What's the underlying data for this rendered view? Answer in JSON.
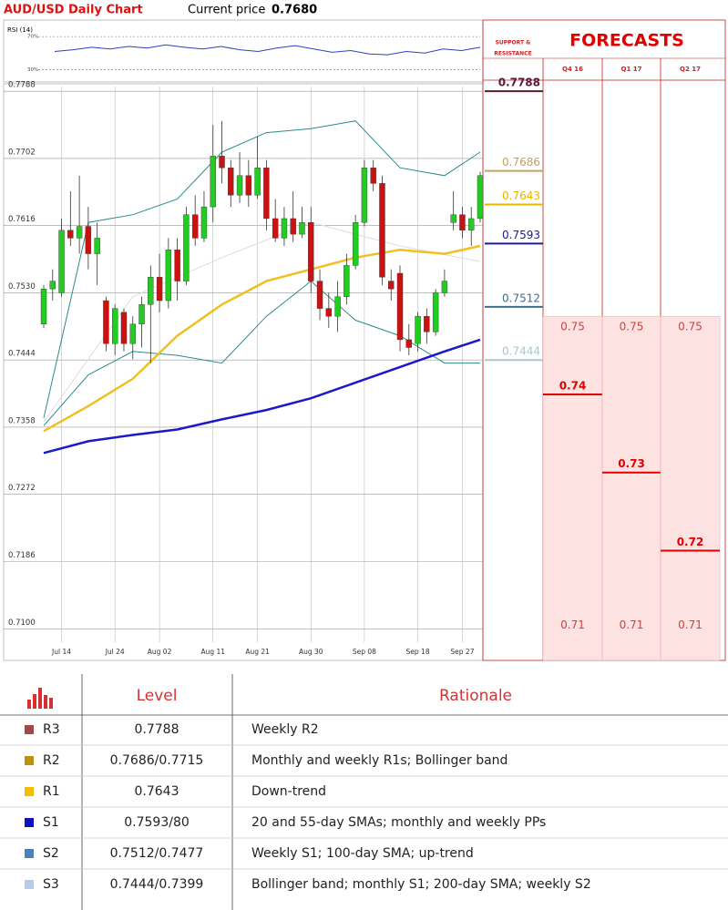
{
  "header": {
    "title": "AUD/USD Daily Chart",
    "price_label": "Current price",
    "price": "0.7680"
  },
  "chart_data": [
    {
      "type": "candlestick",
      "categories": [
        null,
        null,
        "Jul 14",
        null,
        null,
        null,
        null,
        null,
        "Jul 24",
        null,
        null,
        null,
        null,
        "Aug 02",
        null,
        null,
        null,
        null,
        null,
        "Aug 11",
        null,
        null,
        null,
        null,
        "Aug 21",
        null,
        null,
        null,
        null,
        null,
        "Aug 30",
        null,
        null,
        null,
        null,
        null,
        "Sep 08",
        null,
        null,
        null,
        null,
        null,
        "Sep 18",
        null,
        null,
        null,
        null,
        "Sep 27",
        null,
        null
      ],
      "open": [
        0.749,
        0.7535,
        0.753,
        0.761,
        0.76,
        0.7615,
        0.758,
        0.752,
        0.7465,
        0.7505,
        0.7465,
        0.749,
        0.7515,
        0.755,
        0.752,
        0.7585,
        0.7545,
        0.763,
        0.76,
        0.764,
        0.7705,
        0.769,
        0.7655,
        0.768,
        0.7655,
        0.769,
        0.7625,
        0.76,
        0.7625,
        0.7605,
        0.762,
        0.7545,
        0.751,
        0.75,
        0.7525,
        0.7565,
        0.762,
        0.769,
        0.767,
        0.7545,
        0.7555,
        0.747,
        0.7465,
        0.75,
        0.748,
        0.753,
        0.762,
        0.763,
        0.761,
        0.7625
      ],
      "high": [
        0.754,
        0.756,
        0.7625,
        0.766,
        0.768,
        0.764,
        0.762,
        0.7525,
        0.7515,
        0.751,
        0.75,
        0.7525,
        0.7565,
        0.758,
        0.76,
        0.76,
        0.764,
        0.7655,
        0.766,
        0.7745,
        0.775,
        0.77,
        0.771,
        0.77,
        0.773,
        0.77,
        0.765,
        0.764,
        0.766,
        0.764,
        0.764,
        0.756,
        0.753,
        0.7545,
        0.758,
        0.763,
        0.77,
        0.77,
        0.768,
        0.756,
        0.7565,
        0.749,
        0.7505,
        0.751,
        0.7535,
        0.756,
        0.766,
        0.764,
        0.764,
        0.7685
      ],
      "low": [
        0.7485,
        0.752,
        0.7525,
        0.759,
        0.758,
        0.756,
        0.754,
        0.7455,
        0.745,
        0.7455,
        0.7445,
        0.746,
        0.744,
        0.7505,
        0.751,
        0.752,
        0.754,
        0.759,
        0.7595,
        0.762,
        0.767,
        0.764,
        0.7645,
        0.764,
        0.765,
        0.761,
        0.7595,
        0.759,
        0.7595,
        0.76,
        0.753,
        0.7495,
        0.7485,
        0.748,
        0.7515,
        0.756,
        0.7615,
        0.766,
        0.754,
        0.752,
        0.7455,
        0.745,
        0.7455,
        0.7465,
        0.7475,
        0.7525,
        0.761,
        0.76,
        0.759,
        0.762
      ],
      "close": [
        0.7535,
        0.7545,
        0.761,
        0.76,
        0.7615,
        0.758,
        0.76,
        0.7465,
        0.751,
        0.7465,
        0.749,
        0.7515,
        0.755,
        0.752,
        0.7585,
        0.7545,
        0.763,
        0.76,
        0.764,
        0.7705,
        0.769,
        0.7655,
        0.768,
        0.7655,
        0.769,
        0.7625,
        0.76,
        0.7625,
        0.7605,
        0.762,
        0.7545,
        0.751,
        0.75,
        0.7525,
        0.7565,
        0.762,
        0.769,
        0.767,
        0.755,
        0.7535,
        0.747,
        0.746,
        0.75,
        0.748,
        0.753,
        0.7545,
        0.763,
        0.761,
        0.7625,
        0.768
      ],
      "up_color": "#22cc22",
      "down_color": "#cc1111",
      "lines": [
        {
          "color": "#dddddd",
          "x": [
            0,
            10,
            20,
            30,
            40,
            49
          ],
          "values": [
            0.7365,
            0.7525,
            0.7575,
            0.762,
            0.759,
            0.757
          ]
        },
        {
          "color": "#2a8a8a",
          "x": [
            0,
            5,
            10,
            15,
            20,
            25,
            30,
            35,
            40,
            45,
            49
          ],
          "values": [
            0.737,
            0.762,
            0.763,
            0.765,
            0.771,
            0.7735,
            0.774,
            0.775,
            0.769,
            0.768,
            0.771
          ]
        },
        {
          "color": "#2a8a8a",
          "x": [
            0,
            5,
            10,
            15,
            20,
            25,
            30,
            35,
            40,
            45,
            49
          ],
          "values": [
            0.736,
            0.7425,
            0.7455,
            0.745,
            0.744,
            0.75,
            0.7545,
            0.7495,
            0.7475,
            0.744,
            0.744
          ]
        },
        {
          "color": "#f0c020",
          "x": [
            0,
            5,
            10,
            15,
            20,
            25,
            30,
            35,
            40,
            45,
            49
          ],
          "values": [
            0.7353,
            0.7385,
            0.742,
            0.7475,
            0.7515,
            0.7545,
            0.756,
            0.7575,
            0.7585,
            0.758,
            0.759
          ]
        },
        {
          "color": "#1a1ac8",
          "x": [
            0,
            5,
            10,
            15,
            20,
            25,
            30,
            35,
            40,
            45,
            49
          ],
          "values": [
            0.7325,
            0.734,
            0.7348,
            0.7355,
            0.7368,
            0.738,
            0.7395,
            0.7415,
            0.7435,
            0.7455,
            0.747
          ]
        }
      ],
      "ylim": [
        0.7063,
        0.7794
      ],
      "yticks": [
        0.7788,
        0.7702,
        0.7616,
        {
          "value": 0.753,
          "label": "0.7530"
        },
        0.7444,
        0.7358,
        0.7272,
        0.7186,
        {
          "value": 0.71,
          "label": "0.7100"
        }
      ],
      "grid": true
    },
    {
      "type": "line",
      "title": "RSI (14)",
      "values": [
        52,
        54,
        57,
        55,
        58,
        56,
        60,
        57,
        55,
        58,
        54,
        52,
        56,
        59,
        55,
        51,
        53,
        49,
        48,
        52,
        50,
        55,
        53,
        57
      ],
      "color": "#3040c0",
      "ylim": [
        15,
        90
      ],
      "yticks": [
        {
          "value": 70,
          "label": "70%"
        },
        {
          "value": 30,
          "label": "30%"
        }
      ]
    }
  ],
  "levels": {
    "title_lines": [
      "SUPPORT &",
      "RESISTANCE"
    ],
    "values": [
      0.7788,
      0.7686,
      0.7643,
      0.7593,
      0.7512,
      0.7444
    ],
    "colors": [
      "#5a1a3a",
      "#c8a060",
      "#e8b400",
      "#1a1aa0",
      "#3f6e8c",
      "#a8c8c8"
    ]
  },
  "forecasts": {
    "title": "FORECASTS",
    "periods": [
      "Q4 16",
      "Q1 17",
      "Q2 17"
    ],
    "values": [
      0.74,
      0.73,
      0.72
    ],
    "range_high": [
      0.75,
      0.75,
      0.75
    ],
    "range_low": [
      0.71,
      0.71,
      0.71
    ],
    "color": "#e00000",
    "range_color": "#fde2e2"
  },
  "table": {
    "columns": [
      "Level",
      "Rationale"
    ],
    "rows": [
      [
        "R3",
        "0.7788",
        "Weekly R2"
      ],
      [
        "R2",
        "0.7686/0.7715",
        "Monthly and weekly R1s; Bollinger band"
      ],
      [
        "R1",
        "0.7643",
        "Down-trend"
      ],
      [
        "S1",
        "0.7593/80",
        "20 and 55-day SMAs; monthly and weekly PPs"
      ],
      [
        "S2",
        "0.7512/0.7477",
        "Weekly S1; 100-day SMA; up-trend"
      ],
      [
        "S3",
        "0.7444/0.7399",
        "Bollinger band; monthly S1; 200-day SMA; weekly S2"
      ]
    ],
    "row_colors": [
      "#9e4a4a",
      "#c09010",
      "#f0c000",
      "#1010c0",
      "#4a7fb8",
      "#b8cbe6"
    ]
  }
}
